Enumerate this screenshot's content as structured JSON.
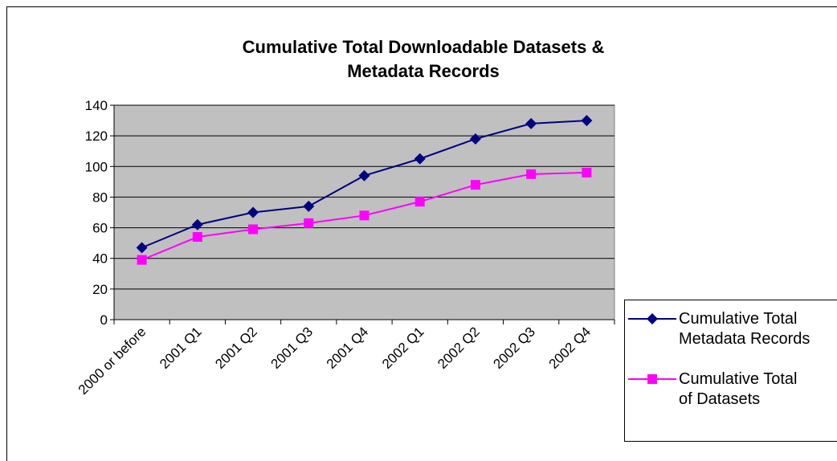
{
  "chart_data": {
    "type": "line",
    "title": "Cumulative Total Downloadable Datasets & Metadata Records",
    "categories": [
      "2000 or before",
      "2001 Q1",
      "2001 Q2",
      "2001 Q3",
      "2001 Q4",
      "2002 Q1",
      "2002 Q2",
      "2002 Q3",
      "2002 Q4"
    ],
    "series": [
      {
        "name": "Cumulative Total Metadata Records",
        "color": "#000080",
        "marker": "diamond",
        "values": [
          47,
          62,
          70,
          74,
          94,
          105,
          118,
          128,
          130
        ]
      },
      {
        "name": "Cumulative Total of Datasets",
        "color": "#ff00ff",
        "marker": "square",
        "values": [
          39,
          54,
          59,
          63,
          68,
          77,
          88,
          95,
          96
        ]
      }
    ],
    "ylim": [
      0,
      140
    ],
    "yticks": [
      0,
      20,
      40,
      60,
      80,
      100,
      120,
      140
    ],
    "grid": true,
    "legend": "right"
  }
}
